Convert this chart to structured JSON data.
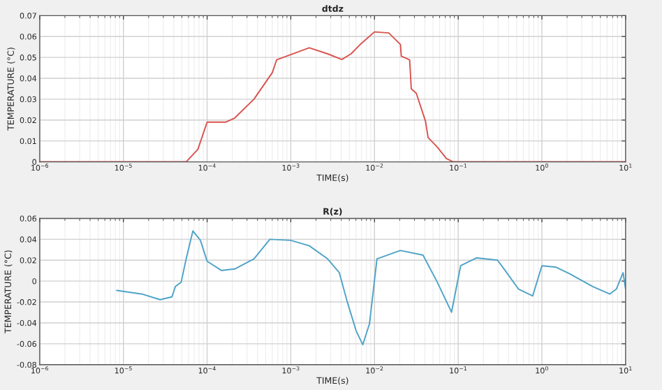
{
  "chart_data": [
    {
      "type": "line",
      "title": "dtdz",
      "xlabel": "TIME(s)",
      "ylabel": "TEMPERATURE (°C)",
      "log": "x",
      "grid": true,
      "marker": "none",
      "line_style": "solid",
      "xlim": [
        1e-06,
        10
      ],
      "xticks": [
        {
          "value": 1e-06,
          "label": "10$^{−6}$"
        },
        {
          "value": 1e-05,
          "label": "10$^{−5}$"
        },
        {
          "value": 0.0001,
          "label": "10$^{−4}$"
        },
        {
          "value": 0.001,
          "label": "10$^{−3}$"
        },
        {
          "value": 0.01,
          "label": "10$^{−2}$"
        },
        {
          "value": 0.1,
          "label": "10$^{−1}$"
        },
        {
          "value": 1,
          "label": "10$^{0}$"
        },
        {
          "value": 10,
          "label": "10$^{1}$"
        }
      ],
      "ylim": [
        0,
        0.07
      ],
      "yticks": [
        0,
        0.01,
        0.02,
        0.03,
        0.04,
        0.05,
        0.06,
        0.07
      ],
      "series": [
        {
          "color": "#d9534f",
          "x": [
            1e-06,
            5.62e-05,
            7.76e-05,
            0.0001,
            0.000166,
            0.000214,
            0.000363,
            0.000603,
            0.000676,
            0.00166,
            0.00275,
            0.00407,
            0.00525,
            0.00676,
            0.01,
            0.0148,
            0.0204,
            0.0209,
            0.0263,
            0.0275,
            0.0316,
            0.0407,
            0.0437,
            0.0562,
            0.0724,
            0.0871,
            10
          ],
          "values": [
            0,
            0,
            0.006,
            0.019,
            0.019,
            0.021,
            0.03,
            0.0428,
            0.0488,
            0.0546,
            0.0517,
            0.049,
            0.0517,
            0.0562,
            0.0622,
            0.0617,
            0.0562,
            0.0506,
            0.0488,
            0.035,
            0.0328,
            0.0194,
            0.0116,
            0.0071,
            0.0016,
            0,
            0
          ]
        }
      ]
    },
    {
      "type": "line",
      "title": "R(z)",
      "xlabel": "TIME(s)",
      "ylabel": "TEMPERATURE (°C)",
      "log": "x",
      "grid": true,
      "marker": "none",
      "line_style": "solid",
      "xlim": [
        1e-06,
        10
      ],
      "xticks": [
        {
          "value": 1e-06,
          "label": "10$^{−6}$"
        },
        {
          "value": 1e-05,
          "label": "10$^{−5}$"
        },
        {
          "value": 0.0001,
          "label": "10$^{−4}$"
        },
        {
          "value": 0.001,
          "label": "10$^{−3}$"
        },
        {
          "value": 0.01,
          "label": "10$^{−2}$"
        },
        {
          "value": 0.1,
          "label": "10$^{−1}$"
        },
        {
          "value": 1,
          "label": "10$^{0}$"
        },
        {
          "value": 10,
          "label": "10$^{1}$"
        }
      ],
      "ylim": [
        -0.08,
        0.06
      ],
      "yticks": [
        -0.08,
        -0.06,
        -0.04,
        -0.02,
        0,
        0.02,
        0.04,
        0.06
      ],
      "series": [
        {
          "color": "#4fa3c7",
          "x": [
            8.32e-06,
            1.66e-05,
            2.75e-05,
            3.8e-05,
            4.17e-05,
            4.9e-05,
            5.62e-05,
            6.76e-05,
            8.32e-05,
            0.0001,
            0.000148,
            0.000214,
            0.000363,
            0.000562,
            0.001,
            0.00166,
            0.00275,
            0.0038,
            0.00468,
            0.00603,
            0.00724,
            0.00871,
            0.0107,
            0.0204,
            0.038,
            0.0562,
            0.0832,
            0.107,
            0.166,
            0.295,
            0.363,
            0.525,
            0.776,
            1,
            1.48,
            2.14,
            4.07,
            6.46,
            7.76,
            9.33,
            10
          ],
          "values": [
            -0.0089,
            -0.0124,
            -0.0178,
            -0.0151,
            -0.0053,
            -0.001,
            0.0213,
            0.048,
            0.039,
            0.019,
            0.0102,
            0.0116,
            0.0213,
            0.04,
            0.039,
            0.0338,
            0.0213,
            0.008,
            -0.0187,
            -0.0476,
            -0.0609,
            -0.0409,
            0.0213,
            0.0293,
            0.0249,
            -0.001,
            -0.0298,
            0.0147,
            0.0222,
            0.02,
            0.0102,
            -0.0076,
            -0.0142,
            0.0147,
            0.0133,
            0.0071,
            -0.0053,
            -0.0124,
            -0.0076,
            0.008,
            -0.0076
          ]
        }
      ]
    }
  ]
}
